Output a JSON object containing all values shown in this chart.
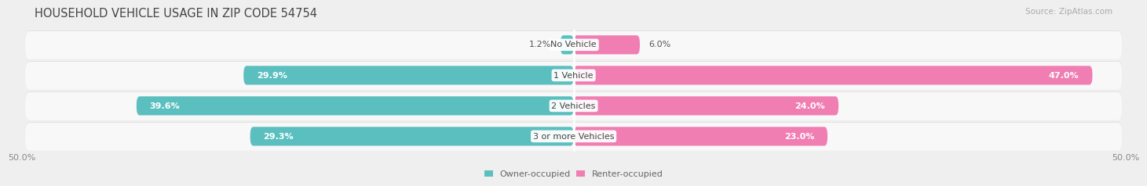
{
  "title": "HOUSEHOLD VEHICLE USAGE IN ZIP CODE 54754",
  "source": "Source: ZipAtlas.com",
  "categories": [
    "No Vehicle",
    "1 Vehicle",
    "2 Vehicles",
    "3 or more Vehicles"
  ],
  "owner_values": [
    1.2,
    29.9,
    39.6,
    29.3
  ],
  "renter_values": [
    6.0,
    47.0,
    24.0,
    23.0
  ],
  "owner_color": "#5BBFBF",
  "renter_color": "#F07EB2",
  "owner_label": "Owner-occupied",
  "renter_label": "Renter-occupied",
  "axis_limit": 50.0,
  "background_color": "#efefef",
  "row_bg_color": "#f8f8f8",
  "row_shadow_color": "#dddddd",
  "title_fontsize": 10.5,
  "source_fontsize": 7.5,
  "label_fontsize": 8,
  "category_fontsize": 8,
  "axis_label_fontsize": 8,
  "x_tick_labels": [
    "50.0%",
    "50.0%"
  ]
}
